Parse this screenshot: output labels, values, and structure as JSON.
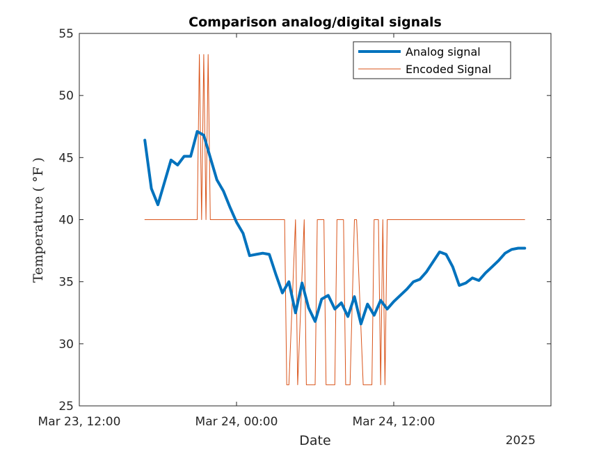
{
  "chart_data": {
    "type": "line",
    "title": "Comparison analog/digital signals",
    "xlabel": "Date",
    "ylabel": "Temperature ( °F )",
    "year_label": "2025",
    "x_tick_labels": [
      "Mar 23, 12:00",
      "Mar 24, 00:00",
      "Mar 24, 12:00"
    ],
    "x_ticks": [
      "2025-03-23T12:00",
      "2025-03-24T00:00",
      "2025-03-24T12:00"
    ],
    "xlim": [
      "2025-03-23T12:00",
      "2025-03-25T00:00"
    ],
    "ylim": [
      25,
      55
    ],
    "y_ticks": [
      25,
      30,
      35,
      40,
      45,
      50,
      55
    ],
    "grid": false,
    "legend_position": "top-right",
    "colors": {
      "analog": "#0072BD",
      "encoded": "#D95319"
    },
    "series": [
      {
        "name": "Analog signal",
        "x": [
          "2025-03-23T17:00",
          "2025-03-23T17:30",
          "2025-03-23T18:00",
          "2025-03-23T18:30",
          "2025-03-23T19:00",
          "2025-03-23T19:30",
          "2025-03-23T20:00",
          "2025-03-23T20:30",
          "2025-03-23T21:00",
          "2025-03-23T21:30",
          "2025-03-23T22:00",
          "2025-03-23T22:30",
          "2025-03-23T23:00",
          "2025-03-23T23:30",
          "2025-03-24T00:00",
          "2025-03-24T00:30",
          "2025-03-24T01:00",
          "2025-03-24T01:30",
          "2025-03-24T02:00",
          "2025-03-24T02:30",
          "2025-03-24T03:00",
          "2025-03-24T03:30",
          "2025-03-24T04:00",
          "2025-03-24T04:30",
          "2025-03-24T05:00",
          "2025-03-24T05:30",
          "2025-03-24T06:00",
          "2025-03-24T06:30",
          "2025-03-24T07:00",
          "2025-03-24T07:30",
          "2025-03-24T08:00",
          "2025-03-24T08:30",
          "2025-03-24T09:00",
          "2025-03-24T09:30",
          "2025-03-24T10:00",
          "2025-03-24T10:30",
          "2025-03-24T11:00",
          "2025-03-24T11:30",
          "2025-03-24T12:00",
          "2025-03-24T12:30",
          "2025-03-24T13:00",
          "2025-03-24T13:30",
          "2025-03-24T14:00",
          "2025-03-24T14:30",
          "2025-03-24T15:00",
          "2025-03-24T15:30",
          "2025-03-24T16:00",
          "2025-03-24T16:30",
          "2025-03-24T17:00",
          "2025-03-24T17:30",
          "2025-03-24T18:00",
          "2025-03-24T18:30",
          "2025-03-24T19:00",
          "2025-03-24T19:30",
          "2025-03-24T20:00",
          "2025-03-24T20:30",
          "2025-03-24T21:00",
          "2025-03-24T21:30",
          "2025-03-24T22:00"
        ],
        "y": [
          46.4,
          42.5,
          41.2,
          43.0,
          44.8,
          44.4,
          45.1,
          45.1,
          47.1,
          46.8,
          45.0,
          43.2,
          42.3,
          41.0,
          39.8,
          38.9,
          37.1,
          37.2,
          37.3,
          37.2,
          35.6,
          34.1,
          35.0,
          32.5,
          34.9,
          32.9,
          31.8,
          33.6,
          33.9,
          32.8,
          33.3,
          32.2,
          33.8,
          31.6,
          33.2,
          32.3,
          33.5,
          32.8,
          33.4,
          33.9,
          34.4,
          35.0,
          35.2,
          35.8,
          36.6,
          37.4,
          37.2,
          36.2,
          34.7,
          34.9,
          35.3,
          35.1,
          35.7,
          36.2,
          36.7,
          37.3,
          37.6,
          37.7,
          37.7
        ]
      },
      {
        "name": "Encoded Signal",
        "x": [
          "2025-03-23T17:00",
          "2025-03-23T21:00",
          "2025-03-23T21:10",
          "2025-03-23T21:20",
          "2025-03-23T21:30",
          "2025-03-23T21:40",
          "2025-03-23T21:50",
          "2025-03-23T22:00",
          "2025-03-23T22:10",
          "2025-03-24T03:40",
          "2025-03-24T03:50",
          "2025-03-24T04:00",
          "2025-03-24T04:30",
          "2025-03-24T04:40",
          "2025-03-24T05:10",
          "2025-03-24T05:20",
          "2025-03-24T06:00",
          "2025-03-24T06:10",
          "2025-03-24T06:20",
          "2025-03-24T06:40",
          "2025-03-24T06:50",
          "2025-03-24T07:30",
          "2025-03-24T07:40",
          "2025-03-24T08:10",
          "2025-03-24T08:20",
          "2025-03-24T08:40",
          "2025-03-24T09:00",
          "2025-03-24T09:10",
          "2025-03-24T09:40",
          "2025-03-24T10:20",
          "2025-03-24T10:30",
          "2025-03-24T10:50",
          "2025-03-24T11:00",
          "2025-03-24T11:10",
          "2025-03-24T11:20",
          "2025-03-24T11:30",
          "2025-03-24T11:40",
          "2025-03-24T22:00"
        ],
        "y": [
          40.0,
          40.0,
          53.3,
          40.0,
          53.3,
          40.0,
          53.3,
          40.0,
          40.0,
          40.0,
          26.7,
          26.7,
          40.0,
          26.7,
          40.0,
          26.7,
          26.7,
          40.0,
          40.0,
          40.0,
          26.7,
          26.7,
          40.0,
          40.0,
          26.7,
          26.7,
          40.0,
          40.0,
          26.7,
          26.7,
          40.0,
          40.0,
          26.7,
          40.0,
          26.7,
          40.0,
          40.0,
          40.0
        ]
      }
    ]
  }
}
